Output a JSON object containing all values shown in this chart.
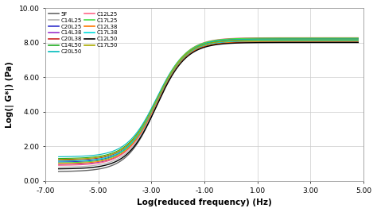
{
  "series": [
    {
      "label": "5F",
      "color": "#666666",
      "lw": 1.0,
      "y_low": 0.55,
      "y_high": 8.25
    },
    {
      "label": "C14L25",
      "color": "#b0b0b0",
      "lw": 0.8,
      "y_low": 0.8,
      "y_high": 8.2
    },
    {
      "label": "C20L25",
      "color": "#3333cc",
      "lw": 0.8,
      "y_low": 1.1,
      "y_high": 8.1
    },
    {
      "label": "C14L38",
      "color": "#9933cc",
      "lw": 0.8,
      "y_low": 0.95,
      "y_high": 8.15
    },
    {
      "label": "C20L38",
      "color": "#cc2222",
      "lw": 0.8,
      "y_low": 1.2,
      "y_high": 8.05
    },
    {
      "label": "C14L50",
      "color": "#22aa22",
      "lw": 0.8,
      "y_low": 1.3,
      "y_high": 8.18
    },
    {
      "label": "C20L50",
      "color": "#00bbbb",
      "lw": 0.8,
      "y_low": 1.4,
      "y_high": 8.22
    },
    {
      "label": "C12L25",
      "color": "#ff6688",
      "lw": 0.8,
      "y_low": 0.9,
      "y_high": 8.3
    },
    {
      "label": "C17L25",
      "color": "#44dd44",
      "lw": 0.8,
      "y_low": 1.05,
      "y_high": 8.28
    },
    {
      "label": "C12L38",
      "color": "#ff7700",
      "lw": 0.8,
      "y_low": 1.0,
      "y_high": 8.08
    },
    {
      "label": "C17L38",
      "color": "#00dddd",
      "lw": 0.8,
      "y_low": 1.15,
      "y_high": 8.12
    },
    {
      "label": "C12L50",
      "color": "#000000",
      "lw": 1.0,
      "y_low": 0.7,
      "y_high": 8.02
    },
    {
      "label": "C17L50",
      "color": "#aaaa00",
      "lw": 0.8,
      "y_low": 1.25,
      "y_high": 8.16
    }
  ],
  "xmin": -7.0,
  "xmax": 5.0,
  "ymin": 0.0,
  "ymax": 10.0,
  "xticks": [
    -7.0,
    -5.0,
    -3.0,
    -1.0,
    1.0,
    3.0,
    5.0
  ],
  "yticks": [
    0.0,
    2.0,
    4.0,
    6.0,
    8.0,
    10.0
  ],
  "xlabel": "Log(reduced frequency) (Hz)",
  "ylabel": "Log(| G*|) (Pa)",
  "bg_color": "#ffffff",
  "grid_color": "#cccccc",
  "x_start": -6.5,
  "x_end": 4.8,
  "converge_x": -2.8,
  "converge_y": 4.0
}
